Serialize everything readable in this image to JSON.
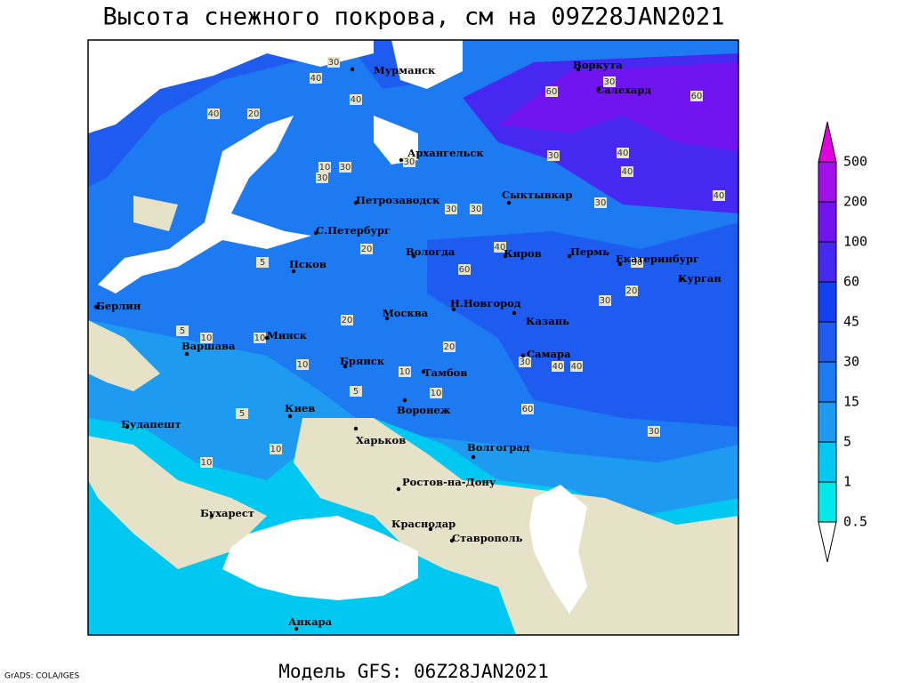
{
  "header": {
    "title": "Высота снежного покрова, см на 09Z28JAN2021",
    "subtitle": "Модель GFS: 06Z28JAN2021",
    "credit": "GrADS: COLA/IGES"
  },
  "map": {
    "cities": [
      "Мурманск",
      "Воркута",
      "Салехард",
      "Архангельск",
      "Сыктывкар",
      "Петрозаводск",
      "С.Петербург",
      "Вологда",
      "Киров",
      "Пермь",
      "Екатеринбург",
      "Курган",
      "Псков",
      "Берлин",
      "Н.Новгород",
      "Москва",
      "Казань",
      "Минск",
      "Варшава",
      "Брянск",
      "Тамбов",
      "Самара",
      "Киев",
      "Воронеж",
      "Будапешт",
      "Харьков",
      "Волгоград",
      "Ростов-на-Дону",
      "Бухарест",
      "Краснодар",
      "Ставрополь",
      "Анкара"
    ],
    "contour_labels": [
      "30",
      "40",
      "40",
      "60",
      "30",
      "60",
      "40",
      "20",
      "10",
      "30",
      "30",
      "30",
      "30",
      "40",
      "40",
      "30",
      "30",
      "30",
      "40",
      "20",
      "20",
      "10",
      "10",
      "5",
      "5",
      "10",
      "10",
      "10",
      "30",
      "40",
      "40",
      "20",
      "30",
      "20",
      "30",
      "10",
      "5",
      "10",
      "5",
      "30",
      "40",
      "60",
      "60"
    ]
  },
  "legend": {
    "levels": [
      500,
      200,
      100,
      60,
      45,
      30,
      15,
      5,
      1,
      0.5
    ],
    "colors": [
      "#e000e0",
      "#a010e8",
      "#7014f0",
      "#4628f0",
      "#1440f0",
      "#1e5cf0",
      "#1e7af0",
      "#1e9af0",
      "#00c8f0",
      "#00e8e8",
      "#a0f4f4"
    ]
  }
}
